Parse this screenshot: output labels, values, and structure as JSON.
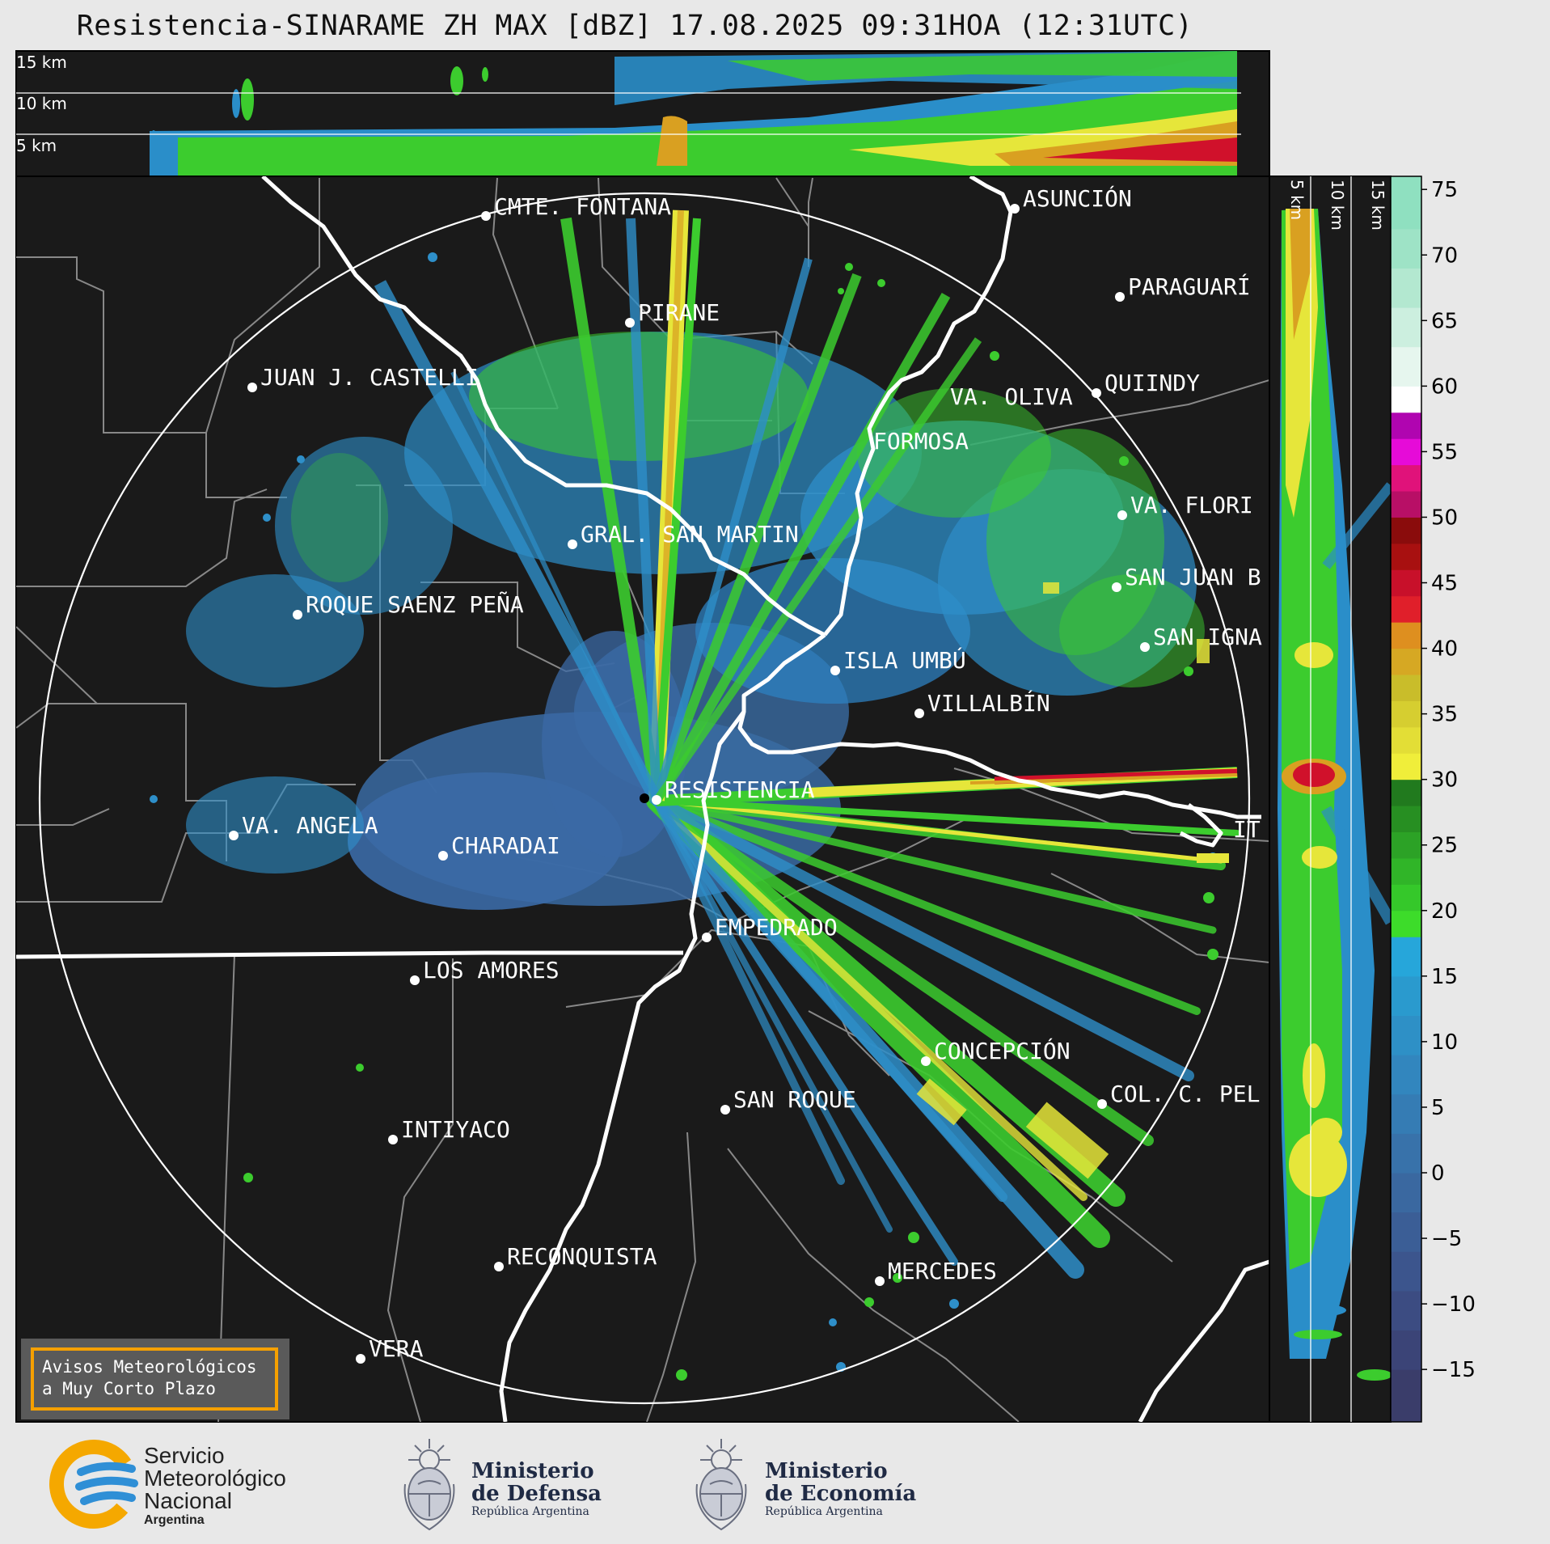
{
  "header": {
    "title": "Resistencia-SINARAME ZH MAX [dBZ] 17.08.2025 09:31HOA (12:31UTC)"
  },
  "top_panel": {
    "height_labels": [
      "15 km",
      "10 km",
      "5 km"
    ]
  },
  "side_panel": {
    "height_labels": [
      "5 km",
      "10 km",
      "15 km"
    ]
  },
  "colorbar": {
    "ticks": [
      "75",
      "70",
      "65",
      "60",
      "55",
      "50",
      "45",
      "40",
      "35",
      "30",
      "25",
      "20",
      "15",
      "10",
      "5",
      "0",
      "−5",
      "−10",
      "−15"
    ],
    "range": [
      -19,
      76
    ],
    "colors": {
      "low": "#3b3f6e",
      "blue": "#2aa3d6",
      "green": "#3ccc2e",
      "yellow": "#e6e63a",
      "orange": "#d9a021",
      "red": "#d0112b",
      "magenta": "#e60bd8",
      "white": "#ffffff",
      "teal": "#8fe0c0"
    }
  },
  "map": {
    "cities": [
      {
        "name": "CMTE. FONTANA"
      },
      {
        "name": "ASUNCIÓN"
      },
      {
        "name": "PARAGUARÍ"
      },
      {
        "name": "PIRANE"
      },
      {
        "name": "JUAN J. CASTELLI"
      },
      {
        "name": "VA. OLIVA"
      },
      {
        "name": "QUIINDY"
      },
      {
        "name": "FORMOSA"
      },
      {
        "name": "VA. FLORI"
      },
      {
        "name": "GRAL. SAN MARTIN"
      },
      {
        "name": "SAN JUAN B"
      },
      {
        "name": "ROQUE SAENZ PEÑA"
      },
      {
        "name": "SAN IGNA"
      },
      {
        "name": "ISLA UMBÚ"
      },
      {
        "name": "VILLALBÍN"
      },
      {
        "name": "RESISTENCIA"
      },
      {
        "name": "VA. ANGELA"
      },
      {
        "name": "CHARADAI"
      },
      {
        "name": "IT"
      },
      {
        "name": "EMPEDRADO"
      },
      {
        "name": "LOS AMORES"
      },
      {
        "name": "CONCEPCIÓN"
      },
      {
        "name": "COL. C. PEL"
      },
      {
        "name": "SAN ROQUE"
      },
      {
        "name": "INTIYACO"
      },
      {
        "name": "RECONQUISTA"
      },
      {
        "name": "MERCEDES"
      },
      {
        "name": "VERA"
      }
    ],
    "warning_box": {
      "line1": "Avisos Meteorológicos",
      "line2": "a Muy Corto Plazo"
    }
  },
  "footer": {
    "smn": {
      "line1": "Servicio",
      "line2": "Meteorológico",
      "line3": "Nacional",
      "line4": "Argentina"
    },
    "defensa": {
      "line1": "Ministerio",
      "line2": "de Defensa",
      "line3": "República Argentina"
    },
    "economia": {
      "line1": "Ministerio",
      "line2": "de Economía",
      "line3": "República Argentina"
    }
  }
}
